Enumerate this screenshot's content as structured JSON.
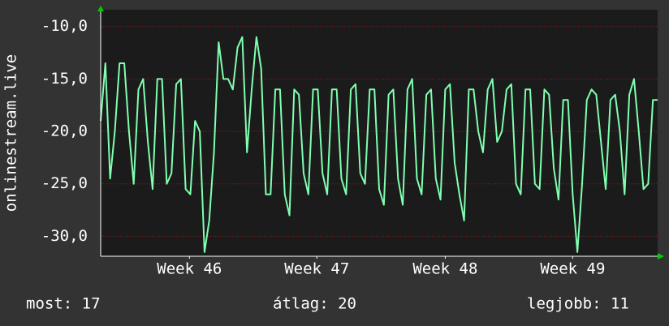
{
  "chart_data": {
    "type": "line",
    "y_label": "onlinestream.live",
    "series": [
      {
        "name": "onlinestream.live",
        "color": "#7fffb0",
        "values": [
          -19,
          -13.5,
          -24.5,
          -20,
          -13.5,
          -13.5,
          -20,
          -25,
          -16,
          -15,
          -21,
          -25.5,
          -15,
          -15,
          -25,
          -24,
          -15.5,
          -15,
          -25.5,
          -26,
          -19,
          -20,
          -31.5,
          -28.5,
          -22,
          -11.5,
          -15,
          -15,
          -16,
          -12,
          -11,
          -22,
          -16,
          -11,
          -14,
          -26,
          -26,
          -16,
          -16,
          -26,
          -28,
          -16,
          -16.5,
          -24,
          -26,
          -16,
          -16,
          -24,
          -26,
          -16,
          -16,
          -24.5,
          -26,
          -16,
          -15.5,
          -24,
          -25,
          -16,
          -16,
          -25.5,
          -27,
          -16.5,
          -16,
          -24.5,
          -27,
          -16,
          -15,
          -24.5,
          -26,
          -16.5,
          -16,
          -24.5,
          -26.5,
          -16,
          -15.5,
          -23,
          -26,
          -28.5,
          -16,
          -16,
          -20,
          -22,
          -16,
          -15,
          -21,
          -20,
          -16,
          -15.5,
          -25,
          -26,
          -16,
          -16,
          -25,
          -25.5,
          -16,
          -16.5,
          -23.5,
          -26.5,
          -17,
          -17,
          -26,
          -31.5,
          -25,
          -17,
          -16,
          -16.5,
          -21,
          -25.5,
          -17,
          -16.5,
          -20,
          -26,
          -16.5,
          -15,
          -20,
          -25.5,
          -25,
          -17,
          -17
        ]
      }
    ],
    "xlim": [
      0,
      118
    ],
    "xticks": [
      {
        "value": 18.8,
        "label": "Week 46"
      },
      {
        "value": 45.8,
        "label": "Week 47"
      },
      {
        "value": 73,
        "label": "Week 48"
      },
      {
        "value": 100,
        "label": "Week 49"
      }
    ],
    "ylim": [
      -31.9,
      -8.4
    ],
    "yticks": [
      {
        "value": -10,
        "label": "-10,0"
      },
      {
        "value": -15,
        "label": "-15,0"
      },
      {
        "value": -20,
        "label": "-20,0"
      },
      {
        "value": -25,
        "label": "-25,0"
      },
      {
        "value": -30,
        "label": "-30,0"
      }
    ],
    "grid": true,
    "footer": {
      "current": "most: 17",
      "average": "átlag: 20",
      "best": "legjobb: 11"
    }
  }
}
